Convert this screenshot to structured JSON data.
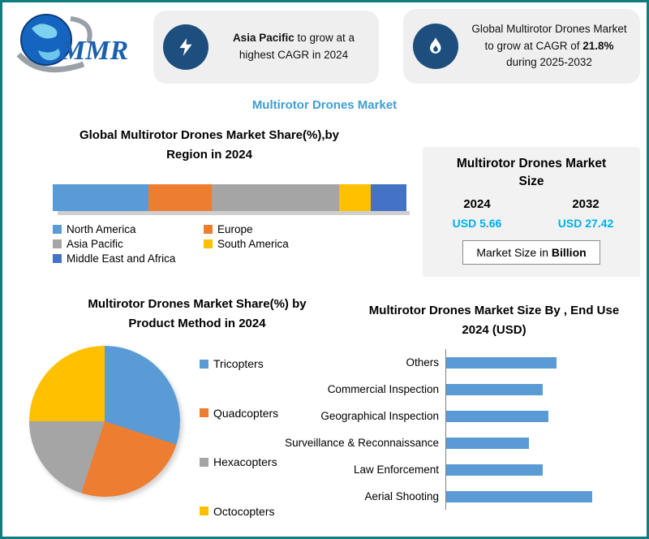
{
  "page": {
    "title": "Multirotor Drones Market",
    "border_color": "#117C80",
    "title_color": "#3E9FD4"
  },
  "logo": {
    "text": "MMR"
  },
  "callouts": {
    "first": {
      "icon": "lightning-icon",
      "bold": "Asia Pacific",
      "rest": "to grow at a highest CAGR in 2024"
    },
    "second": {
      "icon": "flame-icon",
      "pre": "Global Multirotor Drones Market to grow at CAGR of",
      "bold": "21.8%",
      "post": "during 2025-2032"
    }
  },
  "market_size_panel": {
    "title_line1": "Multirotor Drones Market",
    "title_line2": "Size",
    "year_left": "2024",
    "year_right": "2032",
    "value_left": "USD 5.66",
    "value_right": "USD 27.42",
    "value_color": "#00AEEF",
    "footer_text": "Market Size in ",
    "footer_bold": "Billion"
  },
  "chart_data": [
    {
      "type": "bar",
      "subtype": "stacked-horizontal",
      "title": "Global Multirotor Drones Market Share(%),by Region in 2024",
      "title_line1": "Global Multirotor Drones Market Share(%),by",
      "title_line2": "Region in 2024",
      "categories": [
        "North America",
        "Europe",
        "Asia Pacific",
        "South America",
        "Middle East and Africa"
      ],
      "values": [
        27,
        18,
        36,
        9,
        10
      ],
      "unit": "percent-share",
      "colors": [
        "#5B9BD5",
        "#ED7D31",
        "#A5A5A5",
        "#FFC000",
        "#4472C4"
      ],
      "legend_position": "bottom"
    },
    {
      "type": "pie",
      "title": "Multirotor Drones Market Share(%) by Product Method  in 2024",
      "title_line1": "Multirotor Drones Market Share(%) by",
      "title_line2": "Product Method  in 2024",
      "categories": [
        "Tricopters",
        "Quadcopters",
        "Hexacopters",
        "Octocopters"
      ],
      "values": [
        30,
        25,
        20,
        25
      ],
      "unit": "percent-share",
      "colors": [
        "#5B9BD5",
        "#ED7D31",
        "#A5A5A5",
        "#FFC000"
      ],
      "legend_position": "right"
    },
    {
      "type": "bar",
      "subtype": "horizontal",
      "title": "Multirotor Drones  Market Size By , End Use 2024  (USD)",
      "title_line1": "Multirotor Drones  Market Size By , End Use",
      "title_line2": "2024  (USD)",
      "categories": [
        "Others",
        "Commercial Inspection",
        "Geographical Inspection",
        "Surveillance & Reconnaissance",
        "Law Enforcement",
        "Aerial Shooting"
      ],
      "values": [
        56,
        49,
        52,
        42,
        49,
        74
      ],
      "xlim": [
        0,
        100
      ],
      "unit": "relative-bar-length",
      "bar_color": "#5B9BD5",
      "grid": false
    }
  ]
}
